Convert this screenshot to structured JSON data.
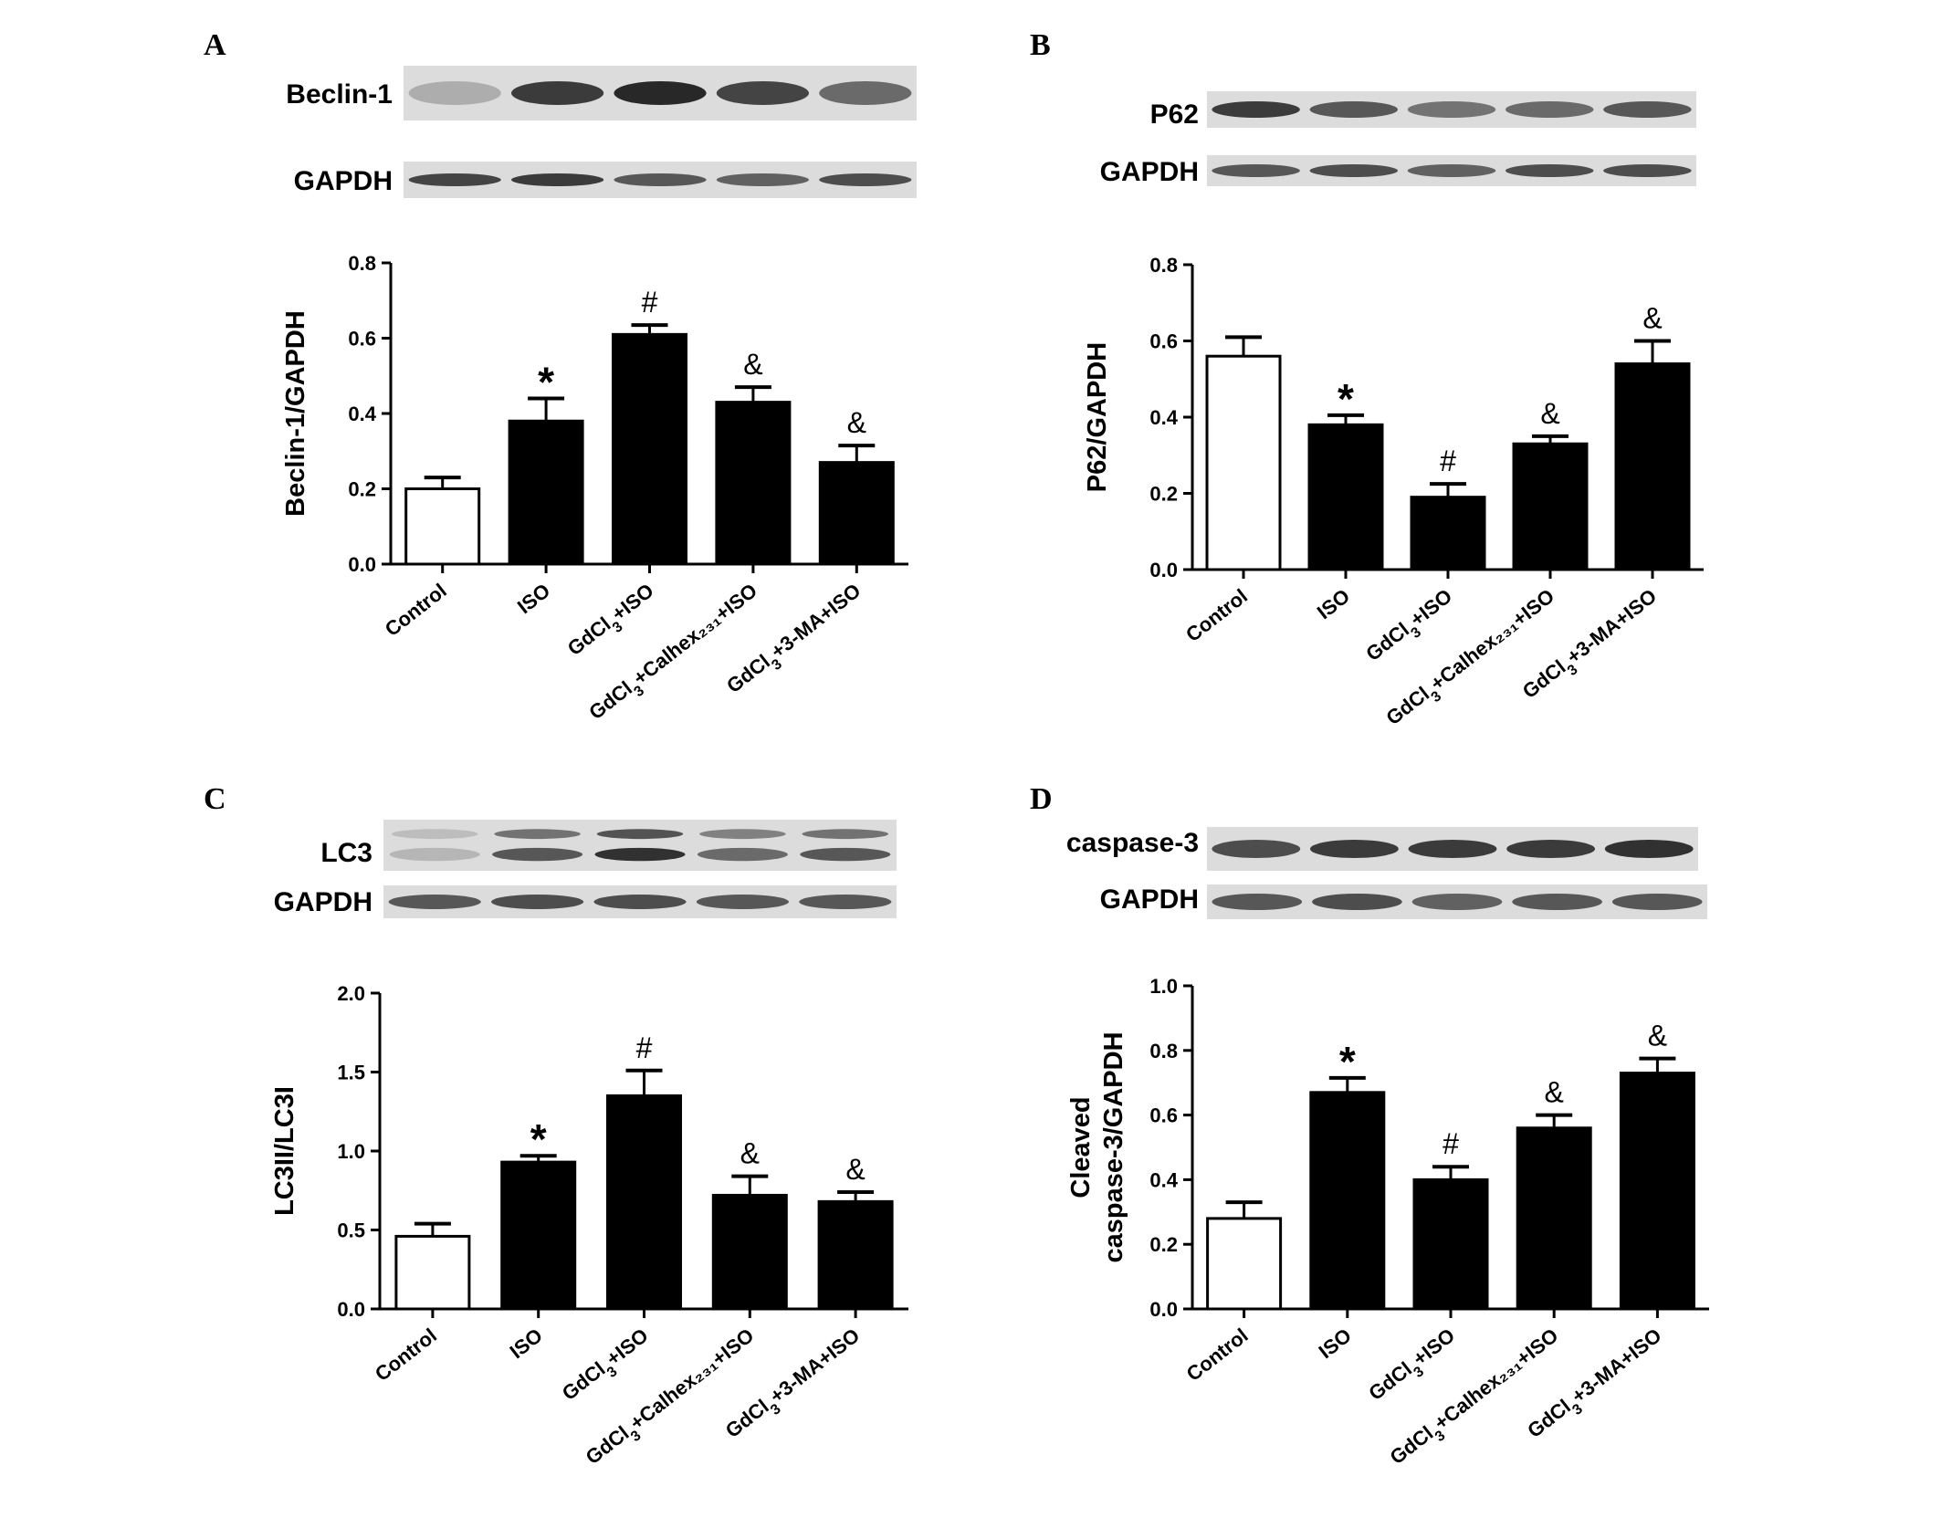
{
  "figure": {
    "panel_labels": [
      "A",
      "B",
      "C",
      "D"
    ],
    "blots": [
      {
        "target_label": "Beclin-1",
        "loading_label": "GAPDH"
      },
      {
        "target_label": "P62",
        "loading_label": "GAPDH"
      },
      {
        "target_label": "LC3",
        "loading_label": "GAPDH"
      },
      {
        "target_label": "caspase-3",
        "loading_label": "GAPDH"
      }
    ]
  },
  "colors": {
    "control_bar": "#ffffff",
    "treatment_bar": "#000000",
    "axis": "#000000",
    "blot_background": "#dcdcdc",
    "band": "#1e1e1e"
  },
  "chart_data": [
    {
      "type": "bar",
      "panel": "A",
      "ylabel": "Beclin-1/GAPDH",
      "ylabel_lines": [
        "Beclin-1/GAPDH"
      ],
      "ylim": [
        0,
        0.8
      ],
      "yticks": [
        "0.0",
        "0.2",
        "0.4",
        "0.6",
        "0.8"
      ],
      "categories": [
        {
          "main": "Control",
          "sub": "",
          "rest": ""
        },
        {
          "main": "ISO",
          "sub": "",
          "rest": ""
        },
        {
          "main": "GdCl",
          "sub": "3",
          "rest": "+ISO"
        },
        {
          "main": "GdCl",
          "sub": "3",
          "rest": "+Calhex₂₃₁+ISO"
        },
        {
          "main": "GdCl",
          "sub": "3",
          "rest": "+3-MA+ISO"
        }
      ],
      "values": [
        0.2,
        0.38,
        0.61,
        0.43,
        0.27
      ],
      "errors": [
        0.03,
        0.06,
        0.025,
        0.04,
        0.045
      ],
      "annotations": [
        "",
        "*",
        "#",
        "&",
        "&"
      ]
    },
    {
      "type": "bar",
      "panel": "B",
      "ylabel": "P62/GAPDH",
      "ylabel_lines": [
        "P62/GAPDH"
      ],
      "ylim": [
        0,
        0.8
      ],
      "yticks": [
        "0.0",
        "0.2",
        "0.4",
        "0.6",
        "0.8"
      ],
      "categories": [
        {
          "main": "Control",
          "sub": "",
          "rest": ""
        },
        {
          "main": "ISO",
          "sub": "",
          "rest": ""
        },
        {
          "main": "GdCl",
          "sub": "3",
          "rest": "+ISO"
        },
        {
          "main": "GdCl",
          "sub": "3",
          "rest": "+Calhex₂₃₁+ISO"
        },
        {
          "main": "GdCl",
          "sub": "3",
          "rest": "+3-MA+ISO"
        }
      ],
      "values": [
        0.56,
        0.38,
        0.19,
        0.33,
        0.54
      ],
      "errors": [
        0.05,
        0.025,
        0.035,
        0.02,
        0.06
      ],
      "annotations": [
        "",
        "*",
        "#",
        "&",
        "&"
      ]
    },
    {
      "type": "bar",
      "panel": "C",
      "ylabel": "LC3II/LC3I",
      "ylabel_lines": [
        "LC3II/LC3I"
      ],
      "ylim": [
        0,
        2.0
      ],
      "yticks": [
        "0.0",
        "0.5",
        "1.0",
        "1.5",
        "2.0"
      ],
      "categories": [
        {
          "main": "Control",
          "sub": "",
          "rest": ""
        },
        {
          "main": "ISO",
          "sub": "",
          "rest": ""
        },
        {
          "main": "GdCl",
          "sub": "3",
          "rest": "+ISO"
        },
        {
          "main": "GdCl",
          "sub": "3",
          "rest": "+Calhex₂₃₁+ISO"
        },
        {
          "main": "GdCl",
          "sub": "3",
          "rest": "+3-MA+ISO"
        }
      ],
      "values": [
        0.46,
        0.93,
        1.35,
        0.72,
        0.68
      ],
      "errors": [
        0.08,
        0.04,
        0.16,
        0.12,
        0.06
      ],
      "annotations": [
        "",
        "*",
        "#",
        "&",
        "&"
      ]
    },
    {
      "type": "bar",
      "panel": "D",
      "ylabel": "Cleaved caspase-3/GAPDH",
      "ylabel_lines": [
        "Cleaved",
        "caspase-3/GAPDH"
      ],
      "ylim": [
        0,
        1.0
      ],
      "yticks": [
        "0.0",
        "0.2",
        "0.4",
        "0.6",
        "0.8",
        "1.0"
      ],
      "categories": [
        {
          "main": "Control",
          "sub": "",
          "rest": ""
        },
        {
          "main": "ISO",
          "sub": "",
          "rest": ""
        },
        {
          "main": "GdCl",
          "sub": "3",
          "rest": "+ISO"
        },
        {
          "main": "GdCl",
          "sub": "3",
          "rest": "+Calhex₂₃₁+ISO"
        },
        {
          "main": "GdCl",
          "sub": "3",
          "rest": "+3-MA+ISO"
        }
      ],
      "values": [
        0.28,
        0.67,
        0.4,
        0.56,
        0.73
      ],
      "errors": [
        0.05,
        0.045,
        0.04,
        0.04,
        0.045
      ],
      "annotations": [
        "",
        "*",
        "#",
        "&",
        "&"
      ]
    }
  ]
}
